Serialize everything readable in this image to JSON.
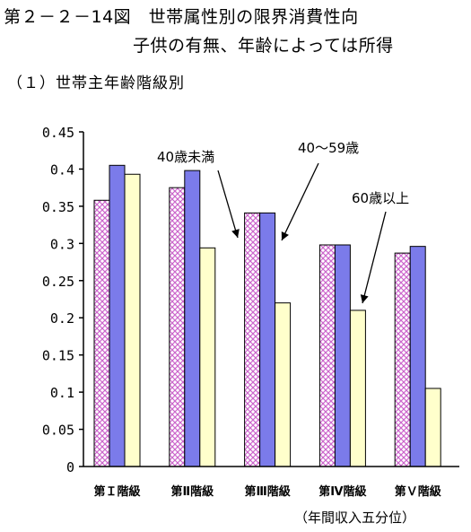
{
  "header": {
    "title_line1": "第２－２－14図　世帯属性別の限界消費性向",
    "title_line2": "子供の有無、年齢によっては所得",
    "subtitle": "（１）世帯主年齢階級別"
  },
  "footnote": "（年間収入五分位）",
  "colors": {
    "under40": "#cc66cc",
    "age40to59": "#7b7bea",
    "age60plus": "#ffffcc",
    "outline": "#000000"
  },
  "chart_data": {
    "type": "bar",
    "categories": [
      "第Ｉ階級",
      "第Ⅱ階級",
      "第Ⅲ階級",
      "第Ⅳ階級",
      "第Ｖ階級"
    ],
    "series": [
      {
        "name": "40歳未満",
        "values": [
          0.358,
          0.375,
          0.341,
          0.298,
          0.287
        ]
      },
      {
        "name": "40～59歳",
        "values": [
          0.405,
          0.398,
          0.341,
          0.298,
          0.296
        ]
      },
      {
        "name": "60歳以上",
        "values": [
          0.393,
          0.294,
          0.22,
          0.21,
          0.105
        ]
      }
    ],
    "ylim": [
      0,
      0.45
    ],
    "yticks": [
      "0",
      "0.05",
      "0.1",
      "0.15",
      "0.2",
      "0.25",
      "0.3",
      "0.35",
      "0.4",
      "0.45"
    ],
    "annotations": [
      {
        "text": "40歳未満",
        "series": 0,
        "category": 2
      },
      {
        "text": "40～59歳",
        "series": 1,
        "category": 2
      },
      {
        "text": "60歳以上",
        "series": 2,
        "category": 3
      }
    ],
    "grid": false,
    "legend": "annotations"
  }
}
